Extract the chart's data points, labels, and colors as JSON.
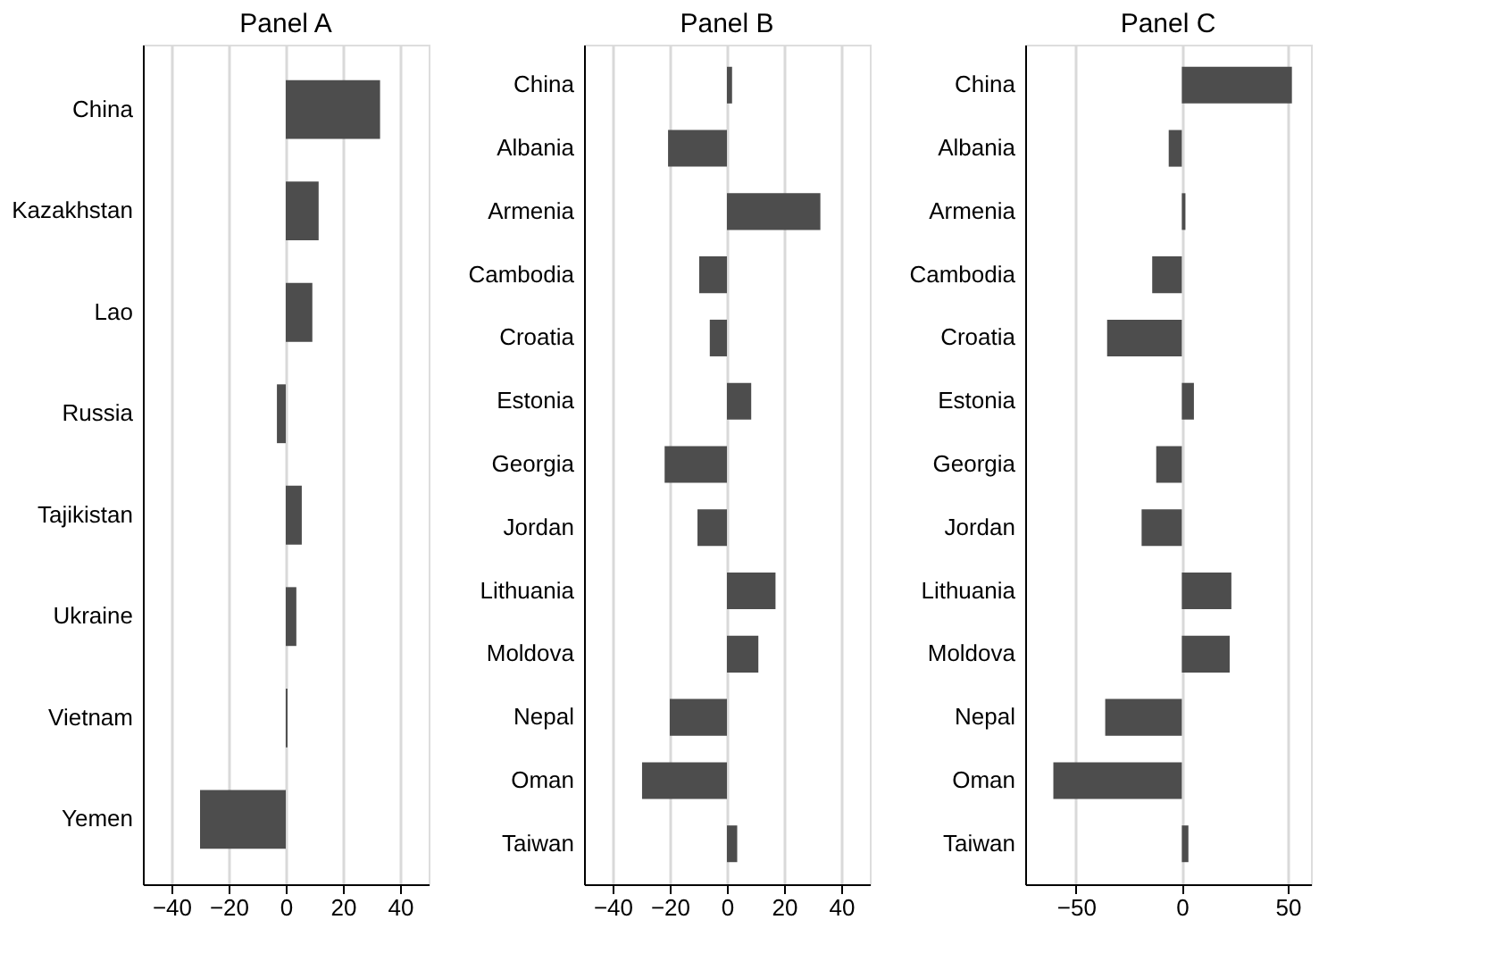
{
  "chart_data": [
    {
      "type": "bar",
      "orientation": "horizontal",
      "title": "Panel A",
      "categories": [
        "China",
        "Kazakhstan",
        "Lao",
        "Russia",
        "Tajikistan",
        "Ukraine",
        "Vietnam",
        "Yemen"
      ],
      "values": [
        33,
        11.5,
        9.3,
        -3.1,
        5.6,
        3.7,
        0.6,
        -30
      ],
      "color": "#4d4d4d",
      "xlim": [
        -50,
        50
      ],
      "xticks": [
        -40,
        -20,
        0,
        20,
        40
      ],
      "grid": "x"
    },
    {
      "type": "bar",
      "orientation": "horizontal",
      "title": "Panel B",
      "categories": [
        "China",
        "Albania",
        "Armenia",
        "Cambodia",
        "Croatia",
        "Estonia",
        "Georgia",
        "Jordan",
        "Lithuania",
        "Moldova",
        "Nepal",
        "Oman",
        "Taiwan"
      ],
      "values": [
        1.8,
        -20.6,
        32.7,
        -9.7,
        -6,
        8.5,
        -21.8,
        -10.3,
        17,
        11,
        -20,
        -29.7,
        3.6
      ],
      "color": "#4d4d4d",
      "xlim": [
        -50,
        50
      ],
      "xticks": [
        -40,
        -20,
        0,
        20,
        40
      ],
      "grid": "x"
    },
    {
      "type": "bar",
      "orientation": "horizontal",
      "title": "Panel C",
      "categories": [
        "China",
        "Albania",
        "Armenia",
        "Cambodia",
        "Croatia",
        "Estonia",
        "Georgia",
        "Jordan",
        "Lithuania",
        "Moldova",
        "Nepal",
        "Oman",
        "Taiwan"
      ],
      "values": [
        52,
        -6.2,
        1.7,
        -14,
        -35.3,
        5.7,
        -12.1,
        -19,
        23.4,
        22.6,
        -36.2,
        -60.7,
        3.1
      ],
      "color": "#4d4d4d",
      "xlim": [
        -74,
        61
      ],
      "xticks": [
        -50,
        0,
        50
      ],
      "grid": "x"
    }
  ]
}
